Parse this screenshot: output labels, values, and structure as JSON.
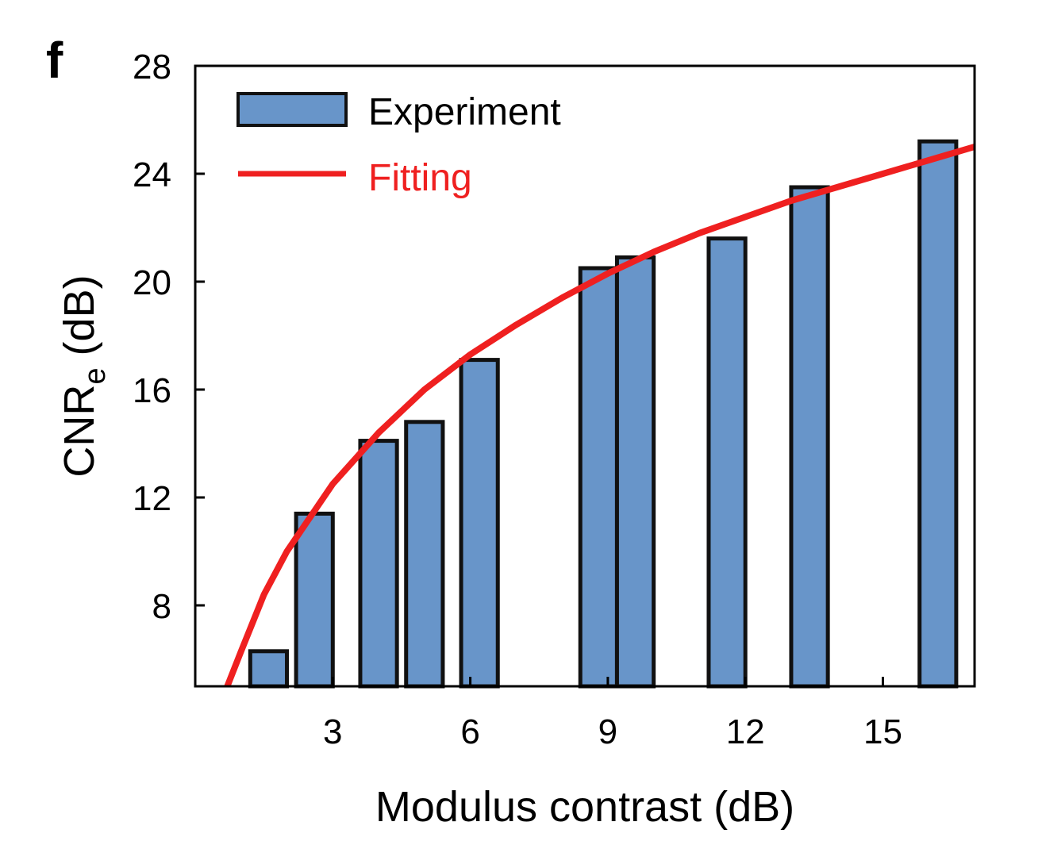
{
  "panel_label": "f",
  "chart_data": {
    "type": "bar",
    "xlabel": "Modulus contrast (dB)",
    "ylabel": {
      "main": "CNR",
      "subscript": "e",
      "unit": "(dB)"
    },
    "xlim": [
      0.0,
      17.0
    ],
    "ylim": [
      5.0,
      28.0
    ],
    "xticks": [
      3,
      6,
      9,
      12,
      15
    ],
    "yticks": [
      8,
      12,
      16,
      20,
      24,
      28
    ],
    "bar_width": 0.8,
    "series": [
      {
        "name": "Experiment",
        "kind": "bar",
        "color": "#6895c9",
        "edge_color": "#111111",
        "x": [
          1.6,
          2.6,
          4.0,
          5.0,
          6.2,
          8.8,
          9.6,
          11.6,
          13.4,
          16.2
        ],
        "values": [
          6.3,
          11.4,
          14.1,
          14.8,
          17.1,
          20.5,
          20.9,
          21.6,
          23.5,
          25.2
        ]
      },
      {
        "name": "Fitting",
        "kind": "line",
        "color": "#ef2020",
        "x": [
          0.7,
          1.0,
          1.5,
          2.0,
          3.0,
          4.0,
          5.0,
          6.0,
          7.0,
          8.0,
          9.0,
          10.0,
          11.0,
          12.0,
          13.0,
          14.0,
          15.0,
          16.0,
          17.0
        ],
        "values": [
          5.0,
          6.3,
          8.4,
          10.0,
          12.5,
          14.4,
          16.0,
          17.3,
          18.4,
          19.4,
          20.3,
          21.1,
          21.8,
          22.4,
          23.0,
          23.5,
          24.0,
          24.5,
          25.0
        ]
      }
    ],
    "legend_position": "top-left",
    "grid": false
  }
}
